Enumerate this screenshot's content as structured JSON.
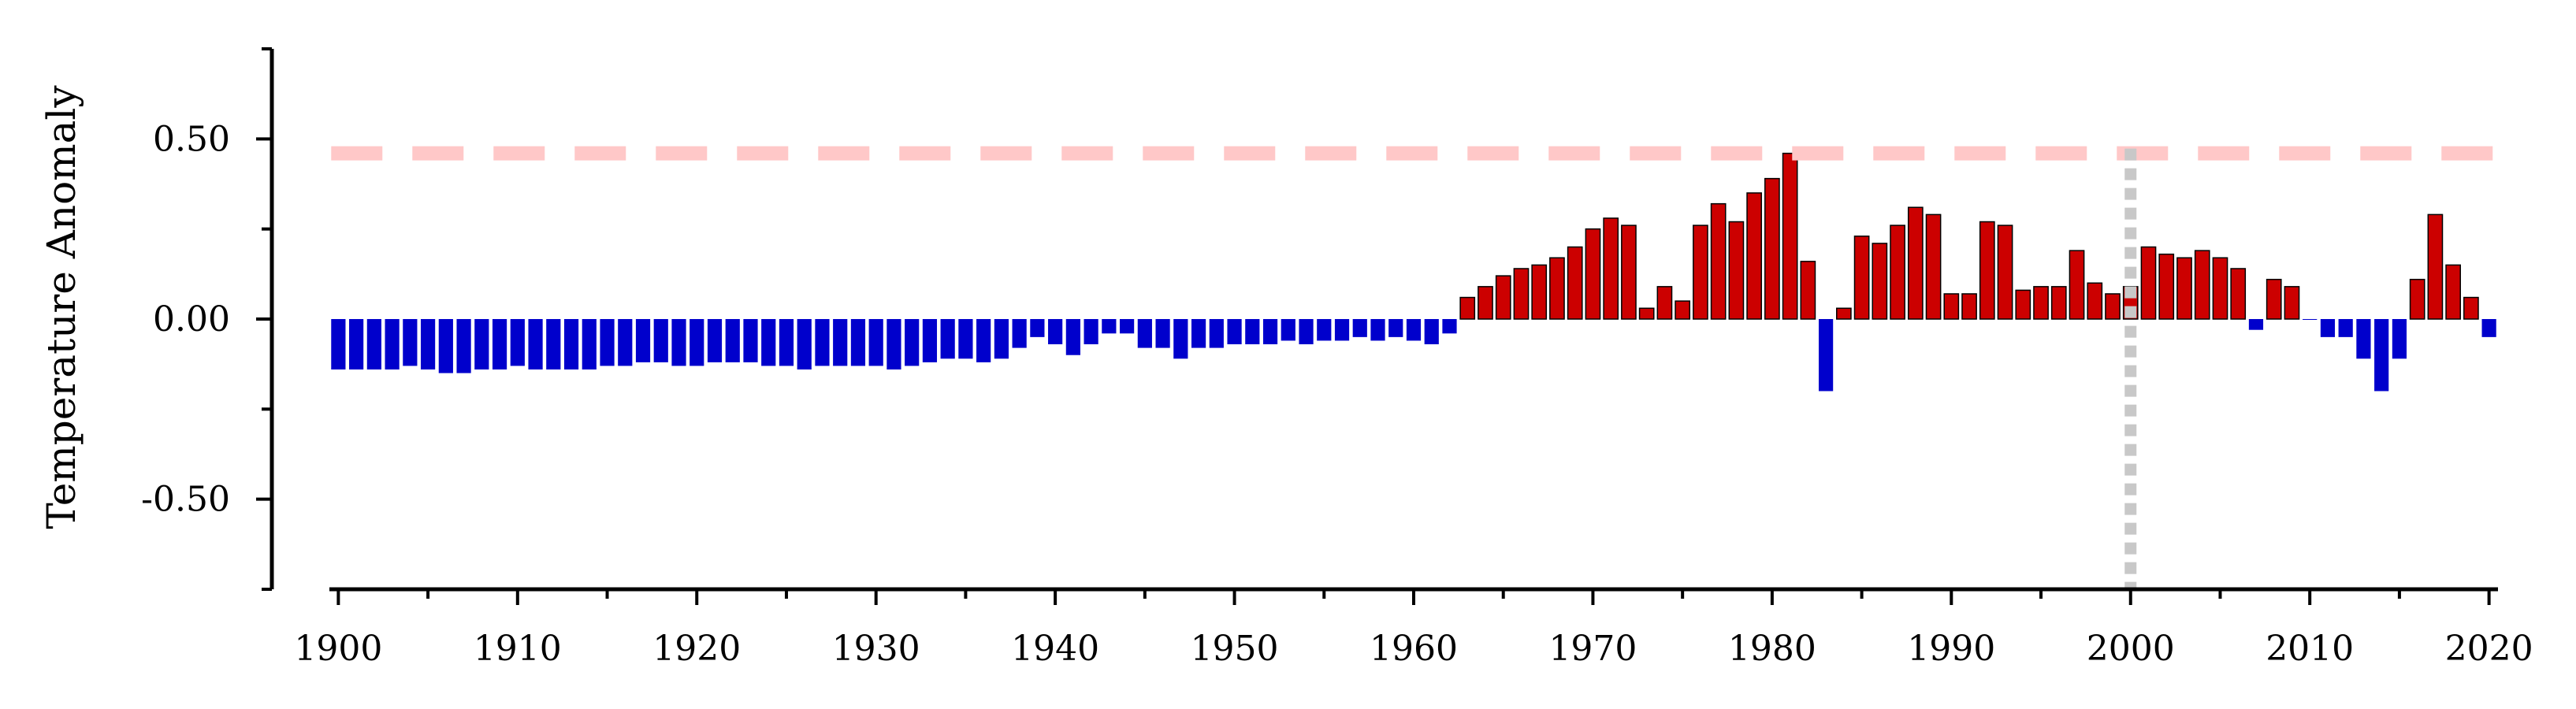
{
  "chart_data": {
    "type": "bar",
    "title": "",
    "xlabel": "",
    "ylabel": "Temperature Anomaly",
    "xlim": [
      1899.5,
      2020.5
    ],
    "ylim": [
      -0.75,
      0.75
    ],
    "x_ticks": [
      1900,
      1910,
      1920,
      1930,
      1940,
      1950,
      1960,
      1970,
      1980,
      1990,
      2000,
      2010,
      2020
    ],
    "x_tick_labels": [
      "1900",
      "1910",
      "1920",
      "1930",
      "1940",
      "1950",
      "1960",
      "1970",
      "1980",
      "1990",
      "2000",
      "2010",
      "2020"
    ],
    "y_ticks": [
      0.5,
      0.0,
      -0.5
    ],
    "y_tick_labels": [
      "0.50",
      "0.00",
      "-0.50"
    ],
    "grid": false,
    "positive_color": "#cc0000",
    "negative_color": "#0000cc",
    "reference_line": {
      "value": 0.46,
      "color": "#ffc8c8",
      "style": "dashed"
    },
    "vertical_marker": {
      "year": 2000,
      "color": "#c8c8c8",
      "style": "dotted"
    },
    "years": [
      1900,
      1901,
      1902,
      1903,
      1904,
      1905,
      1906,
      1907,
      1908,
      1909,
      1910,
      1911,
      1912,
      1913,
      1914,
      1915,
      1916,
      1917,
      1918,
      1919,
      1920,
      1921,
      1922,
      1923,
      1924,
      1925,
      1926,
      1927,
      1928,
      1929,
      1930,
      1931,
      1932,
      1933,
      1934,
      1935,
      1936,
      1937,
      1938,
      1939,
      1940,
      1941,
      1942,
      1943,
      1944,
      1945,
      1946,
      1947,
      1948,
      1949,
      1950,
      1951,
      1952,
      1953,
      1954,
      1955,
      1956,
      1957,
      1958,
      1959,
      1960,
      1961,
      1962,
      1963,
      1964,
      1965,
      1966,
      1967,
      1968,
      1969,
      1970,
      1971,
      1972,
      1973,
      1974,
      1975,
      1976,
      1977,
      1978,
      1979,
      1980,
      1981,
      1982,
      1983,
      1984,
      1985,
      1986,
      1987,
      1988,
      1989,
      1990,
      1991,
      1992,
      1993,
      1994,
      1995,
      1996,
      1997,
      1998,
      1999,
      2000,
      2001,
      2002,
      2003,
      2004,
      2005,
      2006,
      2007,
      2008,
      2009,
      2010,
      2011,
      2012,
      2013,
      2014,
      2015,
      2016,
      2017,
      2018,
      2019,
      2020
    ],
    "values": [
      -0.14,
      -0.14,
      -0.14,
      -0.14,
      -0.13,
      -0.14,
      -0.15,
      -0.15,
      -0.14,
      -0.14,
      -0.13,
      -0.14,
      -0.14,
      -0.14,
      -0.14,
      -0.13,
      -0.13,
      -0.12,
      -0.12,
      -0.13,
      -0.13,
      -0.12,
      -0.12,
      -0.12,
      -0.13,
      -0.13,
      -0.14,
      -0.13,
      -0.13,
      -0.13,
      -0.13,
      -0.14,
      -0.13,
      -0.12,
      -0.11,
      -0.11,
      -0.12,
      -0.11,
      -0.08,
      -0.05,
      -0.07,
      -0.1,
      -0.07,
      -0.04,
      -0.04,
      -0.08,
      -0.08,
      -0.11,
      -0.08,
      -0.08,
      -0.07,
      -0.07,
      -0.07,
      -0.06,
      -0.07,
      -0.06,
      -0.06,
      -0.05,
      -0.06,
      -0.05,
      -0.06,
      -0.07,
      -0.04,
      0.06,
      0.09,
      0.12,
      0.14,
      0.15,
      0.17,
      0.2,
      0.25,
      0.28,
      0.26,
      0.03,
      0.09,
      0.05,
      0.26,
      0.32,
      0.27,
      0.35,
      0.39,
      0.46,
      0.16,
      -0.2,
      0.03,
      0.23,
      0.21,
      0.26,
      0.31,
      0.29,
      0.07,
      0.07,
      0.27,
      0.26,
      0.08,
      0.09,
      0.09,
      0.19,
      0.1,
      0.07,
      0.09,
      0.2,
      0.18,
      0.17,
      0.19,
      0.17,
      0.14,
      -0.03,
      0.11,
      0.09,
      0.0,
      -0.05,
      -0.05,
      -0.11,
      -0.2,
      -0.11,
      0.11,
      0.29,
      0.15,
      0.06,
      -0.05
    ]
  }
}
